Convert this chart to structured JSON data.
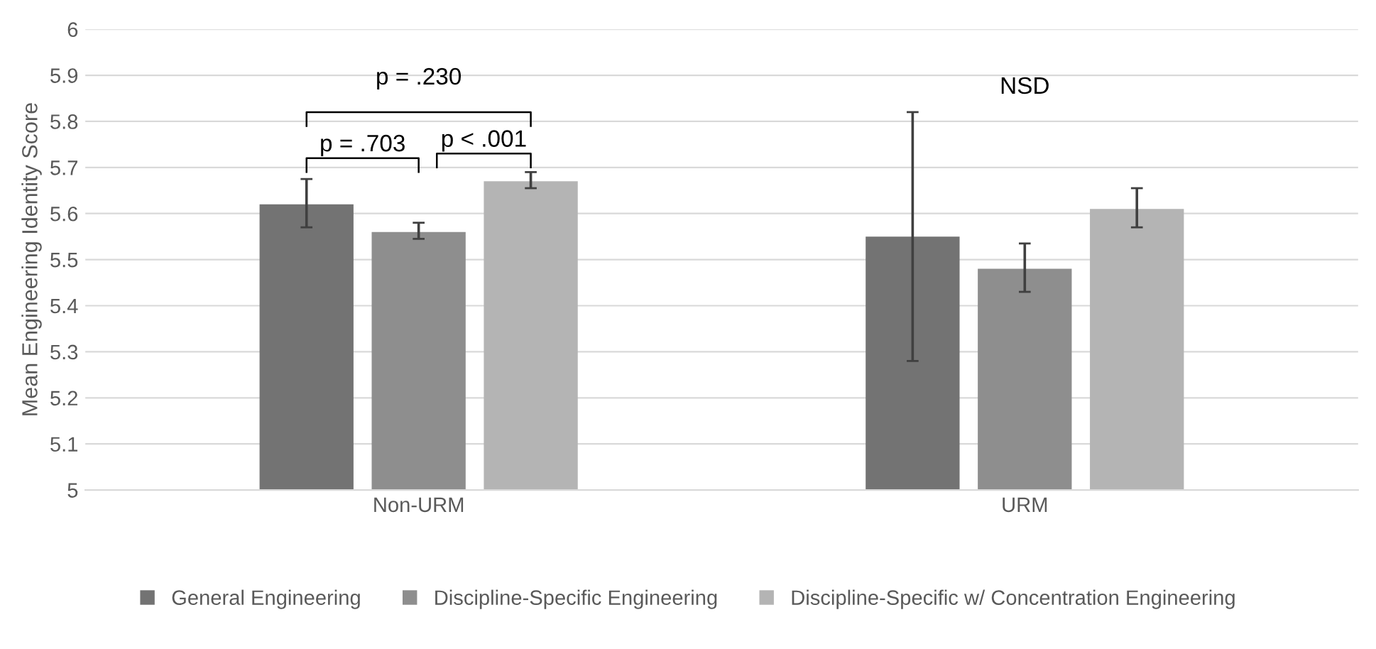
{
  "chart_data": {
    "type": "bar",
    "ylabel": "Mean Engineering Identity Score",
    "categories": [
      "Non-URM",
      "URM"
    ],
    "series": [
      {
        "name": "General Engineering",
        "color": "#737373",
        "values": [
          5.62,
          5.55
        ],
        "errors": [
          [
            5.57,
            5.675
          ],
          [
            5.28,
            5.82
          ]
        ]
      },
      {
        "name": "Discipline-Specific Engineering",
        "color": "#8e8e8e",
        "values": [
          5.56,
          5.48
        ],
        "errors": [
          [
            5.545,
            5.58
          ],
          [
            5.43,
            5.535
          ]
        ]
      },
      {
        "name": "Discipline-Specific w/ Concentration Engineering",
        "color": "#b4b4b4",
        "values": [
          5.67,
          5.61
        ],
        "errors": [
          [
            5.655,
            5.69
          ],
          [
            5.57,
            5.655
          ]
        ]
      }
    ],
    "ylim": [
      5,
      6
    ],
    "yticks": [
      5,
      5.1,
      5.2,
      5.3,
      5.4,
      5.5,
      5.6,
      5.7,
      5.8,
      5.9,
      6
    ],
    "grid": "y",
    "legend": "bottom",
    "annotations": [
      "p = .230",
      "p = .703",
      "p < .001",
      "NSD"
    ]
  }
}
